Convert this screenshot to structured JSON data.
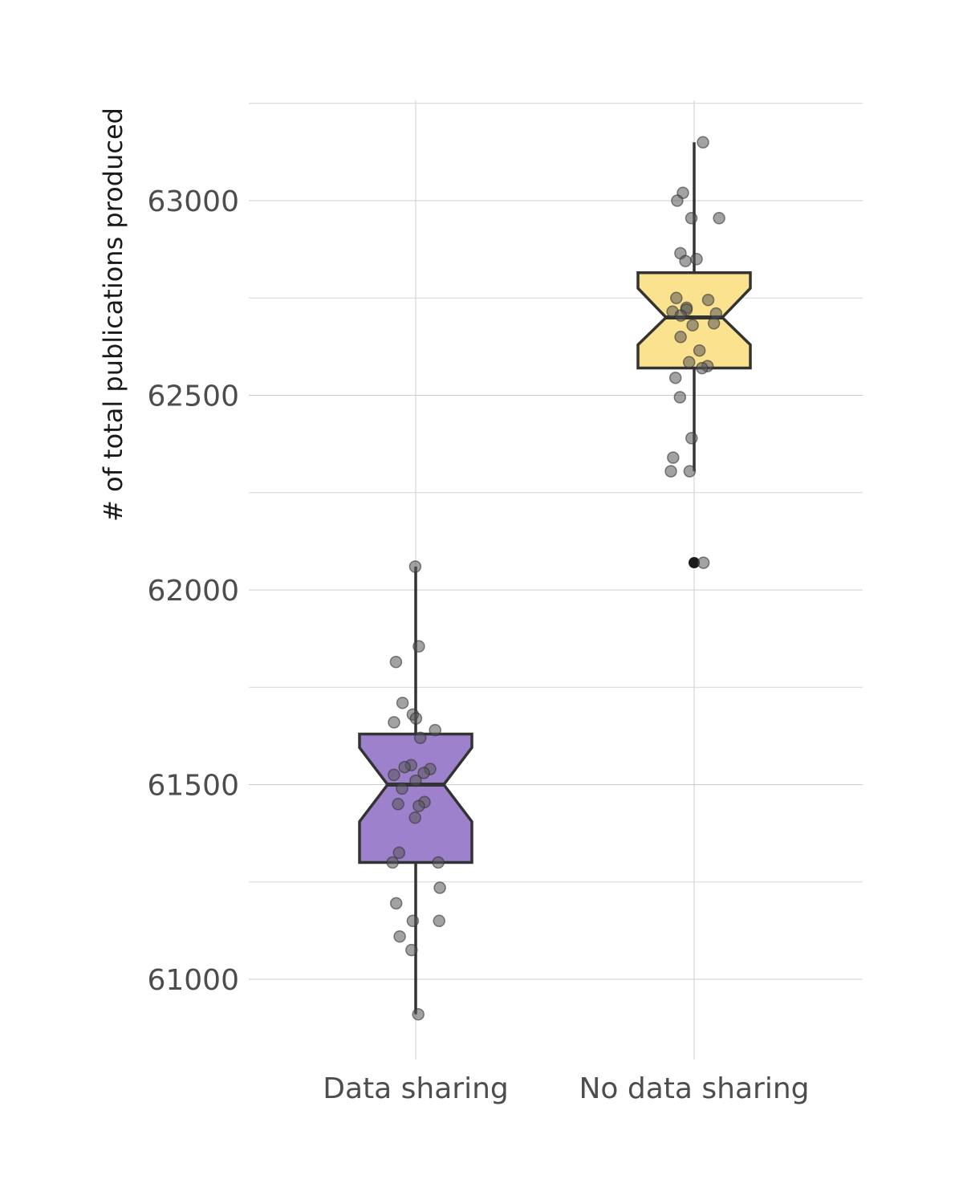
{
  "chart_data": {
    "type": "boxplot",
    "notched": true,
    "title": "",
    "xlabel": "",
    "ylabel": "# of total publications produced",
    "ylim": [
      60800,
      63250
    ],
    "yticks": [
      61000,
      61500,
      62000,
      62500,
      63000
    ],
    "grid": true,
    "categories": [
      "Data sharing",
      "No data sharing"
    ],
    "colors": {
      "Data sharing": "#9e81cc",
      "No data sharing": "#fbe28f",
      "box_outline": "#333333",
      "points": "#555555"
    },
    "boxes": [
      {
        "category": "Data sharing",
        "min": 60910,
        "q1": 61300,
        "median": 61500,
        "q3": 61630,
        "max": 62060,
        "notch_low": 61405,
        "notch_high": 61595,
        "outliers": [],
        "points": [
          62060,
          61855,
          61815,
          61710,
          61680,
          61670,
          61660,
          61640,
          61620,
          61550,
          61545,
          61540,
          61530,
          61525,
          61510,
          61490,
          61455,
          61450,
          61445,
          61415,
          61325,
          61300,
          61300,
          61235,
          61195,
          61150,
          61150,
          61110,
          61075,
          60910
        ]
      },
      {
        "category": "No data sharing",
        "min": 62305,
        "q1": 62570,
        "median": 62700,
        "q3": 62815,
        "max": 63150,
        "notch_low": 62630,
        "notch_high": 62775,
        "outliers": [
          62070
        ],
        "points": [
          63150,
          63020,
          63000,
          62955,
          62955,
          62865,
          62850,
          62845,
          62750,
          62745,
          62725,
          62720,
          62715,
          62710,
          62705,
          62685,
          62680,
          62650,
          62615,
          62585,
          62575,
          62570,
          62545,
          62495,
          62390,
          62340,
          62305,
          62305,
          62070
        ]
      }
    ]
  }
}
